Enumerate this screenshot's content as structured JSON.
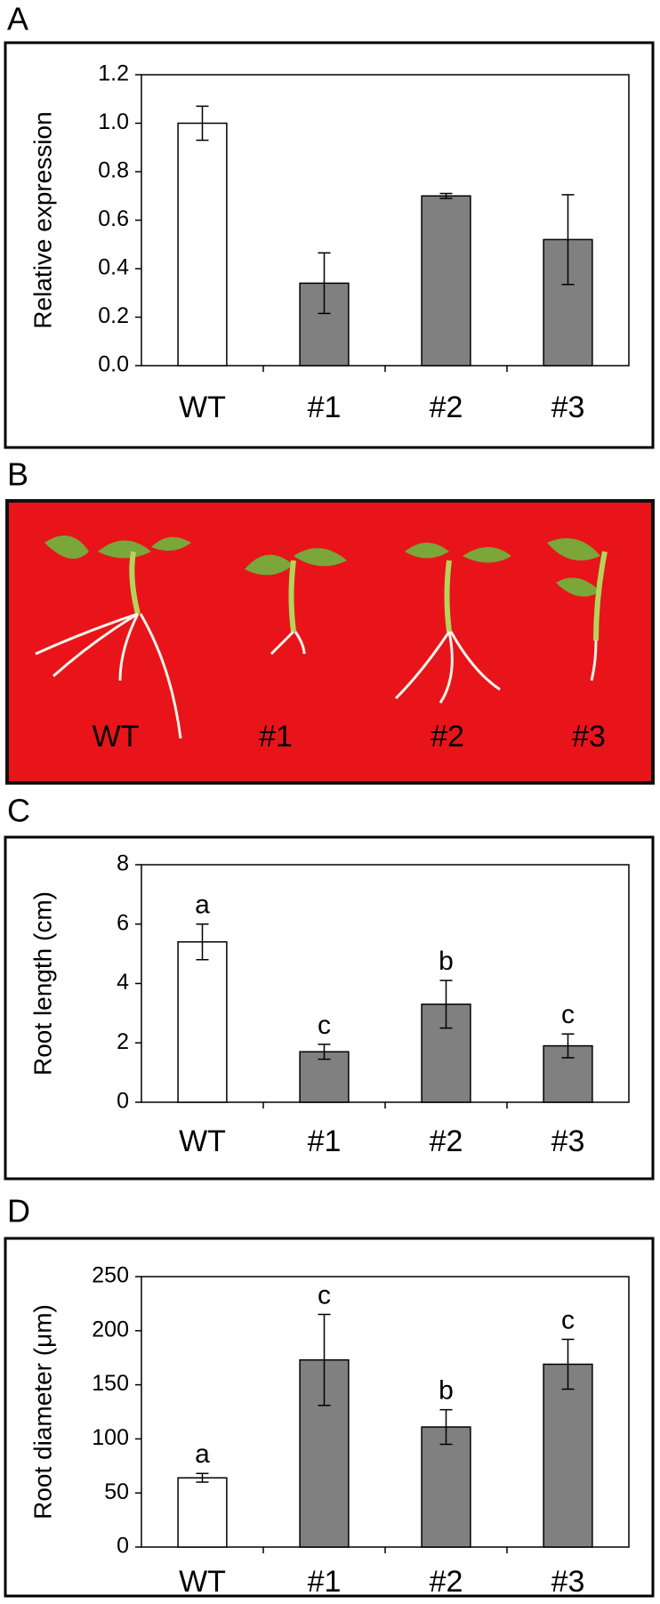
{
  "panel_labels": [
    "A",
    "B",
    "C",
    "D"
  ],
  "photo": {
    "labels": [
      "WT",
      "#1",
      "#2",
      "#3"
    ]
  },
  "chart_data": [
    {
      "type": "bar",
      "y_label": "Relative expression",
      "categories": [
        "WT",
        "#1",
        "#2",
        "#3"
      ],
      "values": [
        1.0,
        0.34,
        0.7,
        0.52
      ],
      "errors": [
        0.07,
        0.125,
        0.01,
        0.185
      ],
      "colors": [
        "#ffffff",
        "#808080",
        "#808080",
        "#808080"
      ],
      "ylim": [
        0,
        1.2
      ],
      "yticks": [
        {
          "value": 0,
          "label": "0.0"
        },
        0.2,
        0.4,
        0.6,
        0.8,
        {
          "value": 1,
          "label": "1.0"
        },
        1.2
      ]
    },
    {
      "type": "bar",
      "y_label": "Root length (cm)",
      "categories": [
        "WT",
        "#1",
        "#2",
        "#3"
      ],
      "values": [
        5.4,
        1.7,
        3.3,
        1.9
      ],
      "errors": [
        0.6,
        0.25,
        0.8,
        0.4
      ],
      "letters": [
        "a",
        "c",
        "b",
        "c"
      ],
      "colors": [
        "#ffffff",
        "#808080",
        "#808080",
        "#808080"
      ],
      "ylim": [
        0,
        8
      ],
      "yticks": [
        0,
        2,
        4,
        6,
        8
      ]
    },
    {
      "type": "bar",
      "y_label": "Root diameter (μm)",
      "categories": [
        "WT",
        "#1",
        "#2",
        "#3"
      ],
      "values": [
        64,
        173,
        111,
        169
      ],
      "errors": [
        4,
        42,
        16,
        23
      ],
      "letters": [
        "a",
        "c",
        "b",
        "c"
      ],
      "colors": [
        "#ffffff",
        "#808080",
        "#808080",
        "#808080"
      ],
      "ylim": [
        0,
        250
      ],
      "yticks": [
        0,
        50,
        100,
        150,
        200,
        250
      ]
    }
  ]
}
